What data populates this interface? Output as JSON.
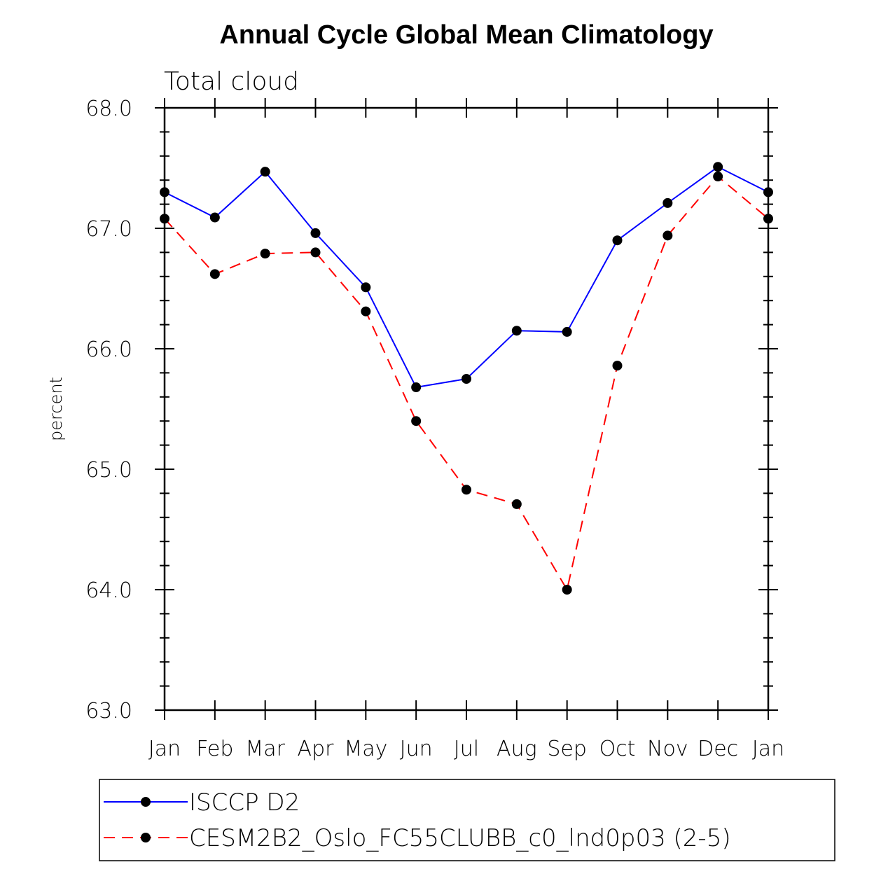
{
  "chart_data": {
    "type": "line",
    "title": "Annual Cycle Global Mean Climatology",
    "subtitle": "Total cloud",
    "xlabel": "",
    "ylabel": "percent",
    "ylim": [
      63.0,
      68.0
    ],
    "yticks": [
      "63.0",
      "64.0",
      "65.0",
      "66.0",
      "67.0",
      "68.0"
    ],
    "categories": [
      "Jan",
      "Feb",
      "Mar",
      "Apr",
      "May",
      "Jun",
      "Jul",
      "Aug",
      "Sep",
      "Oct",
      "Nov",
      "Dec",
      "Jan"
    ],
    "series": [
      {
        "name": "ISCCP D2",
        "color": "#0000ff",
        "dash": "solid",
        "values": [
          67.3,
          67.09,
          67.47,
          66.96,
          66.51,
          65.68,
          65.75,
          66.15,
          66.14,
          66.9,
          67.21,
          67.51,
          67.3
        ]
      },
      {
        "name": "CESM2B2_Oslo_FC55CLUBB_c0_lnd0p03 (2-5)",
        "color": "#ff0000",
        "dash": "dashed",
        "values": [
          67.08,
          66.62,
          66.79,
          66.8,
          66.31,
          65.4,
          64.83,
          64.71,
          64.0,
          65.86,
          66.94,
          67.43,
          67.08
        ]
      }
    ],
    "legend": "bottom",
    "marker_color": "#000000"
  }
}
